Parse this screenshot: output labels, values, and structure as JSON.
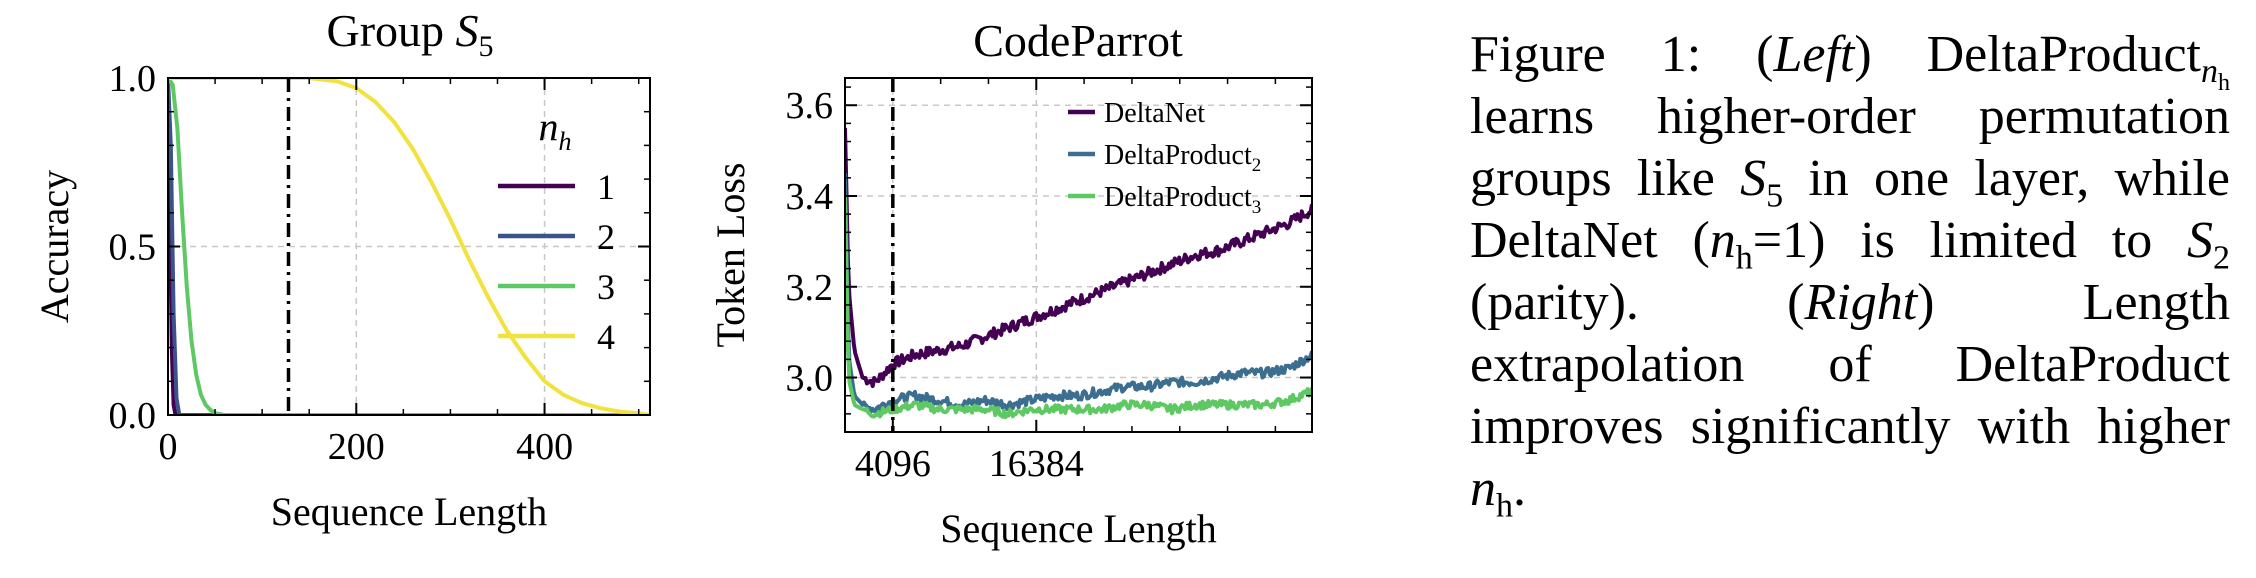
{
  "chart_data": [
    {
      "type": "line",
      "title_text": "Group ",
      "title_math": "S",
      "title_sub": "5",
      "xlabel": "Sequence Length",
      "ylabel": "Accuracy",
      "xlim": [
        0,
        512
      ],
      "ylim": [
        0,
        1.0
      ],
      "xticks": [
        0,
        200,
        400
      ],
      "xtick_labels": [
        "0",
        "200",
        "400"
      ],
      "yticks": [
        0.0,
        0.5,
        1.0
      ],
      "ytick_labels": [
        "0.0",
        "0.5",
        "1.0"
      ],
      "grid": true,
      "vline_x": 128,
      "legend_title": "n",
      "legend_title_sub": "h",
      "legend_position": "right",
      "series": [
        {
          "name": "1",
          "color": "#440154",
          "x": [
            0,
            2,
            4,
            6,
            8,
            512
          ],
          "y": [
            1.0,
            0.6,
            0.2,
            0.03,
            0.0,
            0.0
          ]
        },
        {
          "name": "2",
          "color": "#3b528b",
          "x": [
            0,
            3,
            6,
            9,
            12,
            512
          ],
          "y": [
            1.0,
            0.8,
            0.3,
            0.05,
            0.0,
            0.0
          ]
        },
        {
          "name": "3",
          "color": "#5ec962",
          "x": [
            0,
            5,
            10,
            15,
            20,
            25,
            30,
            35,
            40,
            45,
            50,
            60,
            512
          ],
          "y": [
            1.0,
            0.98,
            0.85,
            0.6,
            0.38,
            0.22,
            0.12,
            0.06,
            0.03,
            0.015,
            0.005,
            0.0,
            0.0
          ]
        },
        {
          "name": "4",
          "color": "#f2e23f",
          "x": [
            0,
            150,
            180,
            200,
            220,
            240,
            260,
            280,
            300,
            320,
            340,
            360,
            380,
            400,
            420,
            440,
            460,
            480,
            500,
            512
          ],
          "y": [
            1.0,
            1.0,
            0.99,
            0.97,
            0.93,
            0.87,
            0.79,
            0.69,
            0.58,
            0.46,
            0.35,
            0.25,
            0.17,
            0.1,
            0.06,
            0.035,
            0.02,
            0.01,
            0.005,
            0.0
          ]
        }
      ]
    },
    {
      "type": "line",
      "title": "CodeParrot",
      "xlabel": "Sequence Length",
      "ylabel": "Token Loss",
      "xlim": [
        0,
        40000
      ],
      "ylim": [
        2.88,
        3.66
      ],
      "xticks": [
        4096,
        16384
      ],
      "xtick_labels": [
        "4096",
        "16384"
      ],
      "yticks": [
        3.0,
        3.2,
        3.4,
        3.6
      ],
      "ytick_labels": [
        "3.0",
        "3.2",
        "3.4",
        "3.6"
      ],
      "grid": true,
      "vline_x": 4096,
      "legend_position": "top-right",
      "series": [
        {
          "name": "DeltaNet",
          "name_sub": "",
          "color": "#440154",
          "x": [
            0,
            300,
            800,
            1500,
            2500,
            3000,
            4096,
            6000,
            8000,
            10000,
            12000,
            14000,
            16000,
            18000,
            20000,
            22000,
            24000,
            26000,
            28000,
            30000,
            32000,
            34000,
            36000,
            38000,
            40000
          ],
          "y": [
            3.55,
            3.2,
            3.06,
            3.0,
            2.99,
            3.0,
            3.03,
            3.05,
            3.06,
            3.07,
            3.09,
            3.11,
            3.13,
            3.15,
            3.17,
            3.19,
            3.21,
            3.23,
            3.25,
            3.27,
            3.28,
            3.3,
            3.32,
            3.34,
            3.37
          ],
          "noise": 0.012
        },
        {
          "name": "DeltaProduct",
          "name_sub": "2",
          "color": "#3b6e8f",
          "x": [
            0,
            300,
            800,
            1500,
            2500,
            4096,
            6000,
            8000,
            10000,
            12000,
            14000,
            16000,
            18000,
            20000,
            22000,
            24000,
            26000,
            28000,
            30000,
            32000,
            34000,
            36000,
            38000,
            40000
          ],
          "y": [
            3.45,
            3.05,
            2.96,
            2.94,
            2.93,
            2.95,
            2.96,
            2.95,
            2.94,
            2.95,
            2.94,
            2.95,
            2.96,
            2.96,
            2.97,
            2.98,
            2.98,
            2.99,
            2.99,
            3.0,
            3.01,
            3.01,
            3.02,
            3.05
          ],
          "noise": 0.01
        },
        {
          "name": "DeltaProduct",
          "name_sub": "3",
          "color": "#5ec962",
          "x": [
            0,
            300,
            800,
            1500,
            2500,
            4096,
            6000,
            8000,
            10000,
            12000,
            14000,
            16000,
            18000,
            20000,
            22000,
            24000,
            26000,
            28000,
            30000,
            32000,
            34000,
            36000,
            38000,
            40000
          ],
          "y": [
            3.4,
            3.0,
            2.94,
            2.93,
            2.92,
            2.93,
            2.94,
            2.93,
            2.93,
            2.93,
            2.92,
            2.93,
            2.93,
            2.93,
            2.93,
            2.94,
            2.94,
            2.93,
            2.94,
            2.94,
            2.94,
            2.94,
            2.95,
            2.97
          ],
          "noise": 0.009
        }
      ]
    }
  ],
  "caption": {
    "prefix": "Figure 1:",
    "left": "Left",
    "model": "DeltaProduct",
    "model_sub_var": "n",
    "model_sub_sub": "h",
    "text1": "learns higher-order permutation groups like",
    "s5": "S",
    "s5_sub": "5",
    "text2": "in one layer, while DeltaNet (",
    "nh_var": "n",
    "nh_sub": "h",
    "text3": "=1) is limited to",
    "s2": "S",
    "s2_sub": "2",
    "text4": "(parity).",
    "right": "Right",
    "text5": "Length extrapolation of DeltaProduct improves significantly with higher",
    "end_var": "n",
    "end_sub": "h",
    "end": "."
  }
}
